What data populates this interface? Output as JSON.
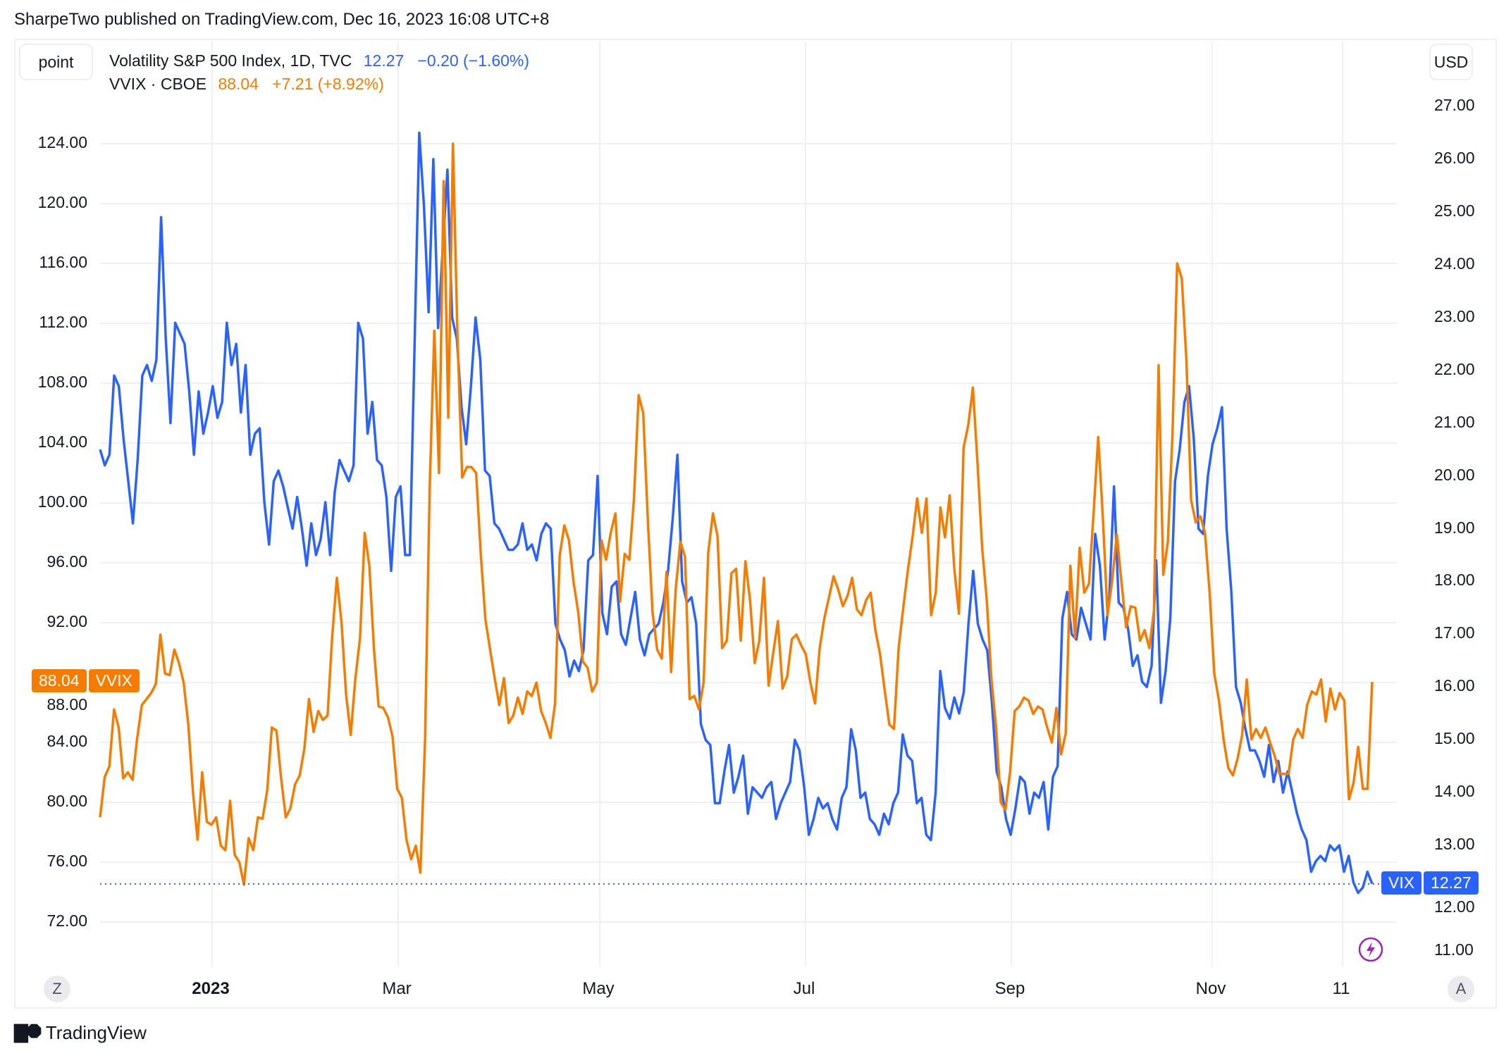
{
  "publish_line": "SharpeTwo published on TradingView.com, Dec 16, 2023 16:08 UTC+8",
  "toolbar": {
    "scale_mode": "point",
    "currency": "USD"
  },
  "legend": {
    "vix": {
      "name": "Volatility S&P 500 Index, 1D, TVC",
      "last": "12.27",
      "change": "−0.20 (−1.60%)"
    },
    "vvix": {
      "name": "VVIX · CBOE",
      "last": "88.04",
      "change": "+7.21 (+8.92%)"
    }
  },
  "price_tags": {
    "vvix": {
      "value": "88.04",
      "label": "VVIX"
    },
    "vix": {
      "value": "12.27",
      "label": "VIX"
    }
  },
  "bottom_buttons": {
    "left": "Z",
    "right": "A"
  },
  "footer": {
    "brand": "TradingView"
  },
  "colors": {
    "vix": "#2962ff",
    "vvix": "#f57c00",
    "grid": "#f0f0f3"
  },
  "chart_data": {
    "type": "line",
    "title": "Volatility S&P 500 Index (VIX) vs VVIX, 1D",
    "x_ticks": [
      "2023",
      "Mar",
      "May",
      "Jul",
      "Sep",
      "Nov",
      "11"
    ],
    "left_axis": {
      "series": "VVIX",
      "ticks": [
        "72.00",
        "76.00",
        "80.00",
        "84.00",
        "88.00",
        "92.00",
        "96.00",
        "100.00",
        "104.00",
        "108.00",
        "112.00",
        "116.00",
        "120.00",
        "124.00"
      ],
      "range": [
        69.5,
        128
      ]
    },
    "right_axis": {
      "series": "VIX",
      "ticks": [
        "11.00",
        "12.00",
        "13.00",
        "14.00",
        "15.00",
        "16.00",
        "17.00",
        "18.00",
        "19.00",
        "20.00",
        "21.00",
        "22.00",
        "23.00",
        "24.00",
        "25.00",
        "26.00",
        "27.00"
      ],
      "range": [
        10.7,
        28.1
      ]
    },
    "grid": true,
    "legend_position": "top-left",
    "last_values": {
      "VIX": 12.27,
      "VVIX": 88.04
    },
    "series": [
      {
        "name": "VIX",
        "axis": "right",
        "color": "#2962ff",
        "values": [
          20.5,
          20.2,
          20.4,
          21.9,
          21.7,
          20.7,
          19.9,
          19.1,
          20.3,
          21.9,
          22.1,
          21.8,
          22.2,
          24.9,
          22.6,
          21.0,
          22.9,
          22.7,
          22.5,
          21.6,
          20.4,
          21.6,
          20.8,
          21.2,
          21.7,
          21.1,
          21.4,
          22.9,
          22.1,
          22.5,
          21.2,
          22.1,
          20.4,
          20.8,
          20.9,
          19.5,
          18.7,
          19.9,
          20.1,
          19.8,
          19.4,
          19.0,
          19.6,
          19.0,
          18.3,
          19.1,
          18.5,
          18.8,
          19.5,
          18.5,
          19.7,
          20.3,
          20.1,
          19.9,
          20.2,
          22.9,
          22.6,
          20.8,
          21.4,
          20.3,
          20.2,
          19.6,
          18.2,
          19.6,
          19.8,
          18.5,
          18.5,
          22.5,
          26.5,
          25.1,
          23.1,
          26.0,
          22.8,
          24.3,
          25.8,
          23.0,
          22.6,
          21.3,
          20.6,
          21.7,
          23.0,
          22.2,
          20.1,
          20.0,
          19.1,
          19.0,
          18.8,
          18.6,
          18.6,
          18.7,
          19.1,
          18.6,
          18.7,
          18.4,
          18.9,
          19.1,
          19.0,
          17.2,
          16.9,
          16.7,
          16.2,
          16.5,
          16.3,
          16.7,
          18.4,
          18.5,
          20.0,
          17.4,
          17.0,
          17.9,
          18.0,
          17.0,
          16.8,
          17.3,
          17.8,
          16.9,
          16.6,
          17.0,
          17.1,
          17.2,
          17.6,
          18.2,
          19.2,
          20.4,
          18.0,
          17.6,
          17.7,
          17.2,
          15.3,
          15.0,
          14.9,
          13.8,
          13.8,
          14.4,
          14.9,
          14.0,
          14.3,
          14.7,
          13.6,
          14.1,
          14.0,
          13.9,
          14.1,
          14.2,
          13.5,
          13.8,
          14.0,
          14.2,
          15.0,
          14.8,
          14.1,
          13.2,
          13.5,
          13.9,
          13.7,
          13.8,
          13.5,
          13.3,
          13.9,
          14.1,
          15.2,
          14.8,
          13.9,
          14.0,
          13.5,
          13.4,
          13.2,
          13.6,
          13.4,
          13.8,
          14.0,
          15.1,
          14.7,
          14.6,
          13.8,
          13.9,
          13.2,
          13.1,
          14.0,
          16.3,
          15.6,
          15.4,
          15.8,
          15.5,
          15.9,
          17.2,
          18.2,
          17.2,
          16.9,
          16.7,
          15.7,
          14.4,
          14.1,
          13.5,
          13.2,
          13.7,
          14.3,
          14.2,
          13.6,
          14.0,
          13.9,
          14.2,
          13.3,
          14.3,
          14.5,
          17.3,
          17.8,
          17.0,
          16.9,
          17.5,
          17.2,
          16.9,
          18.9,
          18.3,
          16.9,
          17.7,
          19.8,
          17.6,
          17.5,
          17.1,
          16.4,
          16.6,
          16.1,
          16.0,
          16.4,
          18.4,
          15.7,
          16.3,
          17.3,
          19.9,
          20.5,
          21.4,
          21.7,
          20.7,
          19.0,
          18.9,
          20.0,
          20.6,
          20.9,
          21.3,
          19.0,
          17.8,
          16.0,
          15.7,
          15.2,
          14.8,
          14.8,
          14.6,
          14.3,
          14.9,
          14.2,
          14.6,
          14.0,
          14.4,
          14.0,
          13.6,
          13.3,
          13.1,
          12.5,
          12.7,
          12.8,
          12.7,
          13.0,
          12.9,
          13.0,
          12.5,
          12.8,
          12.3,
          12.1,
          12.2,
          12.5,
          12.27
        ]
      },
      {
        "name": "VVIX",
        "axis": "left",
        "color": "#f57c00",
        "values": [
          79.0,
          81.7,
          82.4,
          86.2,
          85.0,
          81.6,
          82.0,
          81.5,
          84.3,
          86.5,
          86.9,
          87.3,
          87.9,
          91.2,
          88.6,
          88.5,
          90.2,
          89.3,
          88.0,
          85.2,
          80.7,
          77.5,
          82.0,
          78.7,
          78.5,
          79.0,
          77.1,
          76.8,
          80.1,
          76.5,
          76.0,
          74.5,
          77.6,
          76.8,
          79.0,
          78.9,
          80.8,
          85.0,
          84.8,
          81.6,
          79.0,
          79.6,
          81.2,
          81.8,
          83.6,
          86.9,
          84.7,
          86.1,
          85.5,
          85.8,
          91.1,
          95.0,
          92.0,
          87.2,
          84.5,
          88.3,
          91.0,
          98.0,
          95.8,
          90.2,
          86.4,
          86.3,
          85.7,
          84.4,
          80.9,
          80.3,
          77.5,
          76.2,
          77.1,
          75.3,
          84.1,
          101.0,
          111.5,
          102.0,
          121.5,
          105.7,
          124.0,
          111.0,
          101.7,
          102.4,
          102.4,
          102.0,
          96.6,
          92.2,
          90.2,
          88.3,
          86.5,
          88.3,
          85.3,
          85.8,
          87.0,
          85.9,
          87.4,
          87.1,
          88.0,
          86.1,
          85.3,
          84.3,
          86.6,
          96.5,
          98.5,
          97.5,
          94.7,
          92.7,
          89.4,
          89.0,
          87.4,
          88.0,
          97.5,
          96.2,
          98.0,
          99.3,
          93.4,
          96.6,
          96.2,
          100.3,
          107.2,
          106.0,
          98.8,
          92.7,
          90.2,
          89.6,
          95.4,
          88.7,
          94.3,
          97.4,
          96.4,
          86.9,
          87.1,
          86.2,
          88.0,
          96.7,
          99.3,
          97.8,
          90.3,
          90.8,
          95.3,
          95.6,
          90.8,
          96.1,
          93.5,
          89.3,
          90.8,
          95.0,
          87.8,
          90.0,
          92.1,
          87.6,
          88.4,
          90.9,
          91.2,
          90.5,
          89.9,
          88.0,
          86.6,
          90.3,
          92.3,
          93.7,
          95.1,
          94.2,
          93.1,
          93.8,
          95.0,
          92.9,
          92.5,
          93.5,
          94.0,
          91.5,
          89.9,
          87.5,
          85.2,
          84.9,
          90.3,
          93.0,
          95.5,
          97.7,
          100.3,
          98.0,
          100.3,
          92.5,
          94.0,
          99.7,
          97.7,
          100.5,
          95.6,
          92.6,
          103.7,
          105.2,
          107.7,
          102.6,
          97.0,
          93.5,
          88.2,
          85.0,
          80.0,
          79.5,
          82.0,
          86.1,
          86.4,
          87.0,
          86.8,
          85.9,
          86.4,
          86.2,
          85.0,
          84.0,
          86.3,
          83.2,
          84.6,
          95.8,
          91.0,
          97.0,
          94.0,
          94.6,
          99.3,
          104.4,
          99.0,
          92.5,
          94.8,
          97.9,
          94.7,
          91.7,
          93.1,
          93.0,
          90.8,
          91.5,
          90.3,
          92.8,
          109.2,
          95.2,
          97.4,
          104.6,
          116.0,
          115.0,
          109.5,
          100.2,
          98.7,
          99.1,
          98.0,
          94.0,
          88.6,
          86.8,
          84.2,
          82.3,
          81.8,
          82.9,
          84.5,
          88.2,
          84.2,
          84.9,
          84.3,
          85.0,
          84.0,
          83.1,
          81.9,
          81.9,
          81.9,
          84.2,
          84.9,
          84.3,
          86.5,
          87.4,
          87.2,
          88.2,
          85.4,
          87.6,
          86.2,
          87.3,
          86.8,
          80.2,
          81.3,
          83.7,
          80.9,
          80.9,
          88.04
        ]
      }
    ]
  }
}
